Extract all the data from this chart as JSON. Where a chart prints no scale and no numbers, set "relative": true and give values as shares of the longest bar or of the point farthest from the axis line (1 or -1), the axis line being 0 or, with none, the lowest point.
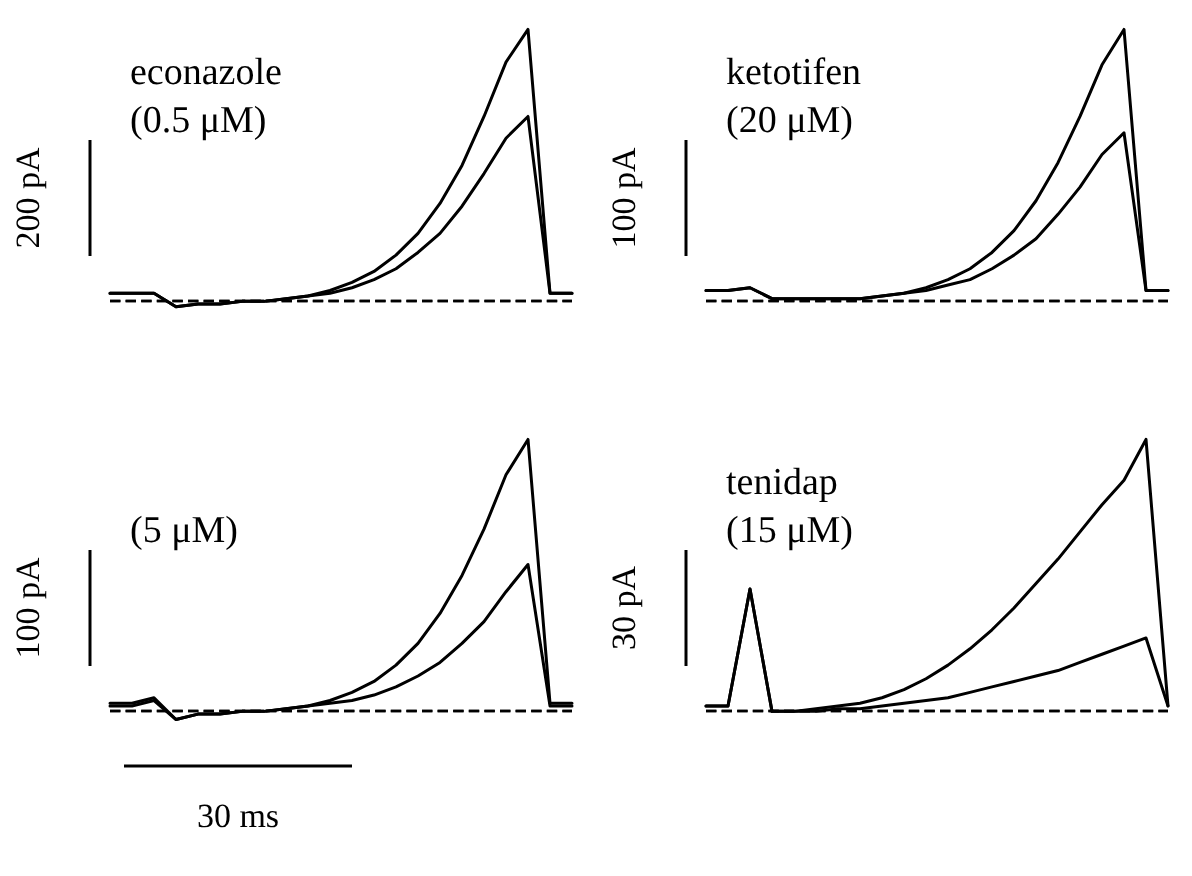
{
  "chart_data": [
    {
      "type": "line",
      "title": "econazole",
      "subtitle": "(0.5 μM)",
      "relative": true,
      "marker": "none",
      "line_style": "solid",
      "categories": [
        null,
        null,
        null,
        null,
        null,
        null,
        null,
        null,
        null,
        null,
        null,
        null,
        null,
        null,
        null,
        null,
        null,
        null,
        null,
        null,
        null,
        null
      ],
      "series": [
        {
          "color": "#000000",
          "values": [
            0.03,
            0.03,
            0.03,
            -0.02,
            -0.01,
            -0.01,
            0,
            0,
            0.01,
            0.02,
            0.04,
            0.07,
            0.11,
            0.17,
            0.25,
            0.36,
            0.5,
            0.68,
            0.88,
            1.0,
            0.03,
            0.03
          ]
        },
        {
          "color": "#000000",
          "values": [
            0.03,
            0.03,
            0.03,
            -0.02,
            -0.01,
            -0.01,
            0,
            0,
            0.01,
            0.02,
            0.03,
            0.05,
            0.08,
            0.12,
            0.18,
            0.25,
            0.35,
            0.47,
            0.6,
            0.68,
            0.03,
            0.03
          ]
        }
      ],
      "ref_lines": [
        {
          "axis": "y",
          "value": 0,
          "color": "#000000",
          "line_style": "dashed"
        }
      ],
      "annotations": [
        "200 pA"
      ]
    },
    {
      "type": "line",
      "title": "ketotifen",
      "subtitle": "(20 μM)",
      "relative": true,
      "marker": "none",
      "line_style": "solid",
      "categories": [
        null,
        null,
        null,
        null,
        null,
        null,
        null,
        null,
        null,
        null,
        null,
        null,
        null,
        null,
        null,
        null,
        null,
        null,
        null,
        null,
        null,
        null
      ],
      "series": [
        {
          "color": "#000000",
          "values": [
            0.04,
            0.04,
            0.05,
            0.01,
            0.01,
            0.01,
            0.01,
            0.01,
            0.02,
            0.03,
            0.05,
            0.08,
            0.12,
            0.18,
            0.26,
            0.37,
            0.51,
            0.68,
            0.87,
            1.0,
            0.04,
            0.04
          ]
        },
        {
          "color": "#000000",
          "values": [
            0.04,
            0.04,
            0.05,
            0.01,
            0.01,
            0.01,
            0.01,
            0.01,
            0.02,
            0.03,
            0.04,
            0.06,
            0.08,
            0.12,
            0.17,
            0.23,
            0.32,
            0.42,
            0.54,
            0.62,
            0.04,
            0.04
          ]
        }
      ],
      "ref_lines": [
        {
          "axis": "y",
          "value": 0,
          "color": "#000000",
          "line_style": "dashed"
        }
      ],
      "annotations": [
        "100 pA"
      ]
    },
    {
      "type": "line",
      "subtitle": "(5 μM)",
      "relative": true,
      "marker": "none",
      "line_style": "solid",
      "categories": [
        null,
        null,
        null,
        null,
        null,
        null,
        null,
        null,
        null,
        null,
        null,
        null,
        null,
        null,
        null,
        null,
        null,
        null,
        null,
        null,
        null,
        null
      ],
      "series": [
        {
          "color": "#000000",
          "values": [
            0.03,
            0.03,
            0.05,
            -0.03,
            -0.01,
            -0.01,
            0,
            0,
            0.01,
            0.02,
            0.04,
            0.07,
            0.11,
            0.17,
            0.25,
            0.36,
            0.5,
            0.67,
            0.87,
            1.0,
            0.03,
            0.03
          ]
        },
        {
          "color": "#000000",
          "values": [
            0.02,
            0.02,
            0.04,
            -0.03,
            -0.01,
            -0.01,
            0,
            0,
            0.01,
            0.02,
            0.03,
            0.04,
            0.06,
            0.09,
            0.13,
            0.18,
            0.25,
            0.33,
            0.44,
            0.54,
            0.02,
            0.02
          ]
        }
      ],
      "ref_lines": [
        {
          "axis": "y",
          "value": 0,
          "color": "#000000",
          "line_style": "dashed"
        }
      ],
      "annotations": [
        "100 pA",
        "30 ms"
      ]
    },
    {
      "type": "line",
      "title": "tenidap",
      "subtitle": "(15 μM)",
      "relative": true,
      "marker": "none",
      "line_style": "solid",
      "categories": [
        null,
        null,
        null,
        null,
        null,
        null,
        null,
        null,
        null,
        null,
        null,
        null,
        null,
        null,
        null,
        null,
        null,
        null,
        null,
        null,
        null,
        null
      ],
      "series": [
        {
          "color": "#000000",
          "values": [
            0.02,
            0.02,
            0.45,
            0.0,
            0.0,
            0.01,
            0.02,
            0.03,
            0.05,
            0.08,
            0.12,
            0.17,
            0.23,
            0.3,
            0.38,
            0.47,
            0.56,
            0.66,
            0.76,
            0.85,
            1.0,
            0.02
          ]
        },
        {
          "color": "#000000",
          "values": [
            0.02,
            0.02,
            0.45,
            0.0,
            0.0,
            0.0,
            0.01,
            0.01,
            0.02,
            0.03,
            0.04,
            0.05,
            0.07,
            0.09,
            0.11,
            0.13,
            0.15,
            0.18,
            0.21,
            0.24,
            0.27,
            0.02
          ]
        }
      ],
      "ref_lines": [
        {
          "axis": "y",
          "value": 0,
          "color": "#000000",
          "line_style": "dashed"
        }
      ],
      "annotations": [
        "30 pA"
      ]
    }
  ]
}
